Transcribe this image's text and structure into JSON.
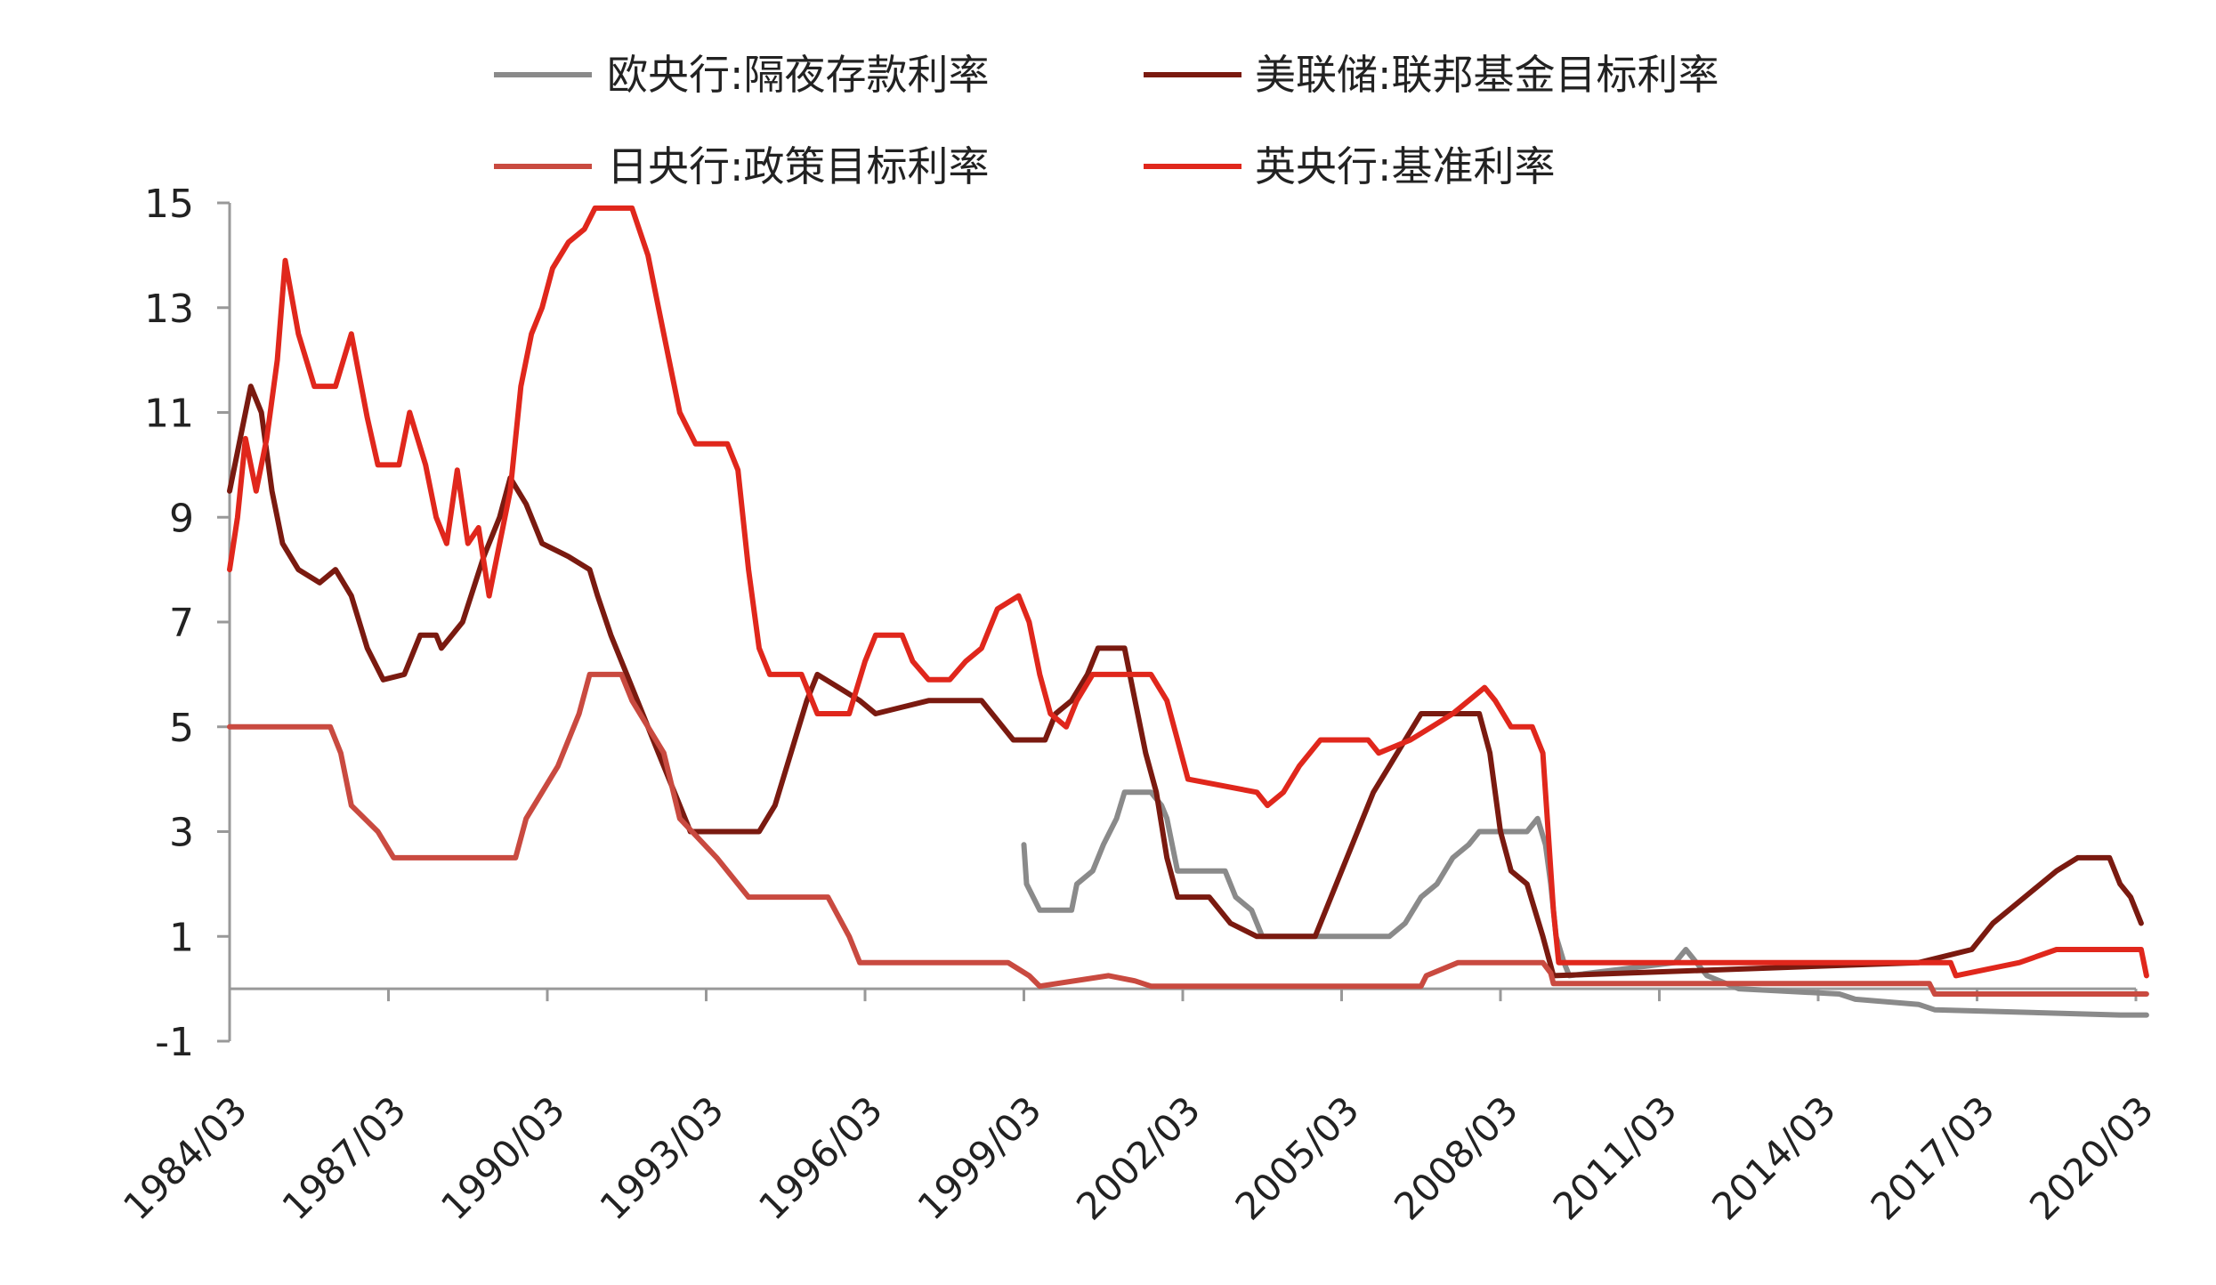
{
  "chart_data": {
    "type": "line",
    "x_ticks": [
      "1984/03",
      "1987/03",
      "1990/03",
      "1993/03",
      "1996/03",
      "1999/03",
      "2002/03",
      "2005/03",
      "2008/03",
      "2011/03",
      "2014/03",
      "2017/03",
      "2020/03"
    ],
    "ylim": [
      -1,
      15
    ],
    "y_ticks": [
      -1,
      1,
      3,
      5,
      7,
      9,
      11,
      13,
      15
    ],
    "legend_position": "top",
    "grid": false,
    "series": [
      {
        "name": "欧央行:隔夜存款利率",
        "color": "#8a8a8a",
        "points": [
          [
            1999.0,
            2.75
          ],
          [
            1999.05,
            2.0
          ],
          [
            1999.3,
            1.5
          ],
          [
            1999.9,
            1.5
          ],
          [
            2000.0,
            2.0
          ],
          [
            2000.3,
            2.25
          ],
          [
            2000.5,
            2.75
          ],
          [
            2000.75,
            3.25
          ],
          [
            2000.9,
            3.75
          ],
          [
            2001.4,
            3.75
          ],
          [
            2001.6,
            3.5
          ],
          [
            2001.7,
            3.25
          ],
          [
            2001.8,
            2.75
          ],
          [
            2001.9,
            2.25
          ],
          [
            2002.8,
            2.25
          ],
          [
            2003.0,
            1.75
          ],
          [
            2003.3,
            1.5
          ],
          [
            2003.5,
            1.0
          ],
          [
            2005.9,
            1.0
          ],
          [
            2006.2,
            1.25
          ],
          [
            2006.5,
            1.75
          ],
          [
            2006.8,
            2.0
          ],
          [
            2007.1,
            2.5
          ],
          [
            2007.4,
            2.75
          ],
          [
            2007.6,
            3.0
          ],
          [
            2008.5,
            3.0
          ],
          [
            2008.7,
            3.25
          ],
          [
            2008.85,
            2.75
          ],
          [
            2008.95,
            2.0
          ],
          [
            2009.05,
            1.0
          ],
          [
            2009.2,
            0.5
          ],
          [
            2009.3,
            0.25
          ],
          [
            2011.3,
            0.5
          ],
          [
            2011.5,
            0.75
          ],
          [
            2011.9,
            0.25
          ],
          [
            2012.5,
            0.0
          ],
          [
            2014.4,
            -0.1
          ],
          [
            2014.7,
            -0.2
          ],
          [
            2015.9,
            -0.3
          ],
          [
            2016.2,
            -0.4
          ],
          [
            2019.7,
            -0.5
          ],
          [
            2020.2,
            -0.5
          ]
        ]
      },
      {
        "name": "美联储:联邦基金目标利率",
        "color": "#7a1a10",
        "points": [
          [
            1984.0,
            9.5
          ],
          [
            1984.2,
            10.5
          ],
          [
            1984.4,
            11.5
          ],
          [
            1984.6,
            11.0
          ],
          [
            1984.8,
            9.5
          ],
          [
            1985.0,
            8.5
          ],
          [
            1985.3,
            8.0
          ],
          [
            1985.7,
            7.75
          ],
          [
            1986.0,
            8.0
          ],
          [
            1986.3,
            7.5
          ],
          [
            1986.6,
            6.5
          ],
          [
            1986.9,
            5.9
          ],
          [
            1987.3,
            6.0
          ],
          [
            1987.6,
            6.75
          ],
          [
            1987.9,
            6.75
          ],
          [
            1988.0,
            6.5
          ],
          [
            1988.4,
            7.0
          ],
          [
            1988.8,
            8.25
          ],
          [
            1989.1,
            9.0
          ],
          [
            1989.3,
            9.75
          ],
          [
            1989.6,
            9.25
          ],
          [
            1989.9,
            8.5
          ],
          [
            1990.4,
            8.25
          ],
          [
            1990.8,
            8.0
          ],
          [
            1990.95,
            7.5
          ],
          [
            1991.2,
            6.75
          ],
          [
            1991.5,
            6.0
          ],
          [
            1991.8,
            5.25
          ],
          [
            1992.1,
            4.5
          ],
          [
            1992.4,
            3.75
          ],
          [
            1992.7,
            3.0
          ],
          [
            1993.5,
            3.0
          ],
          [
            1994.0,
            3.0
          ],
          [
            1994.3,
            3.5
          ],
          [
            1994.6,
            4.5
          ],
          [
            1994.9,
            5.5
          ],
          [
            1995.1,
            6.0
          ],
          [
            1995.5,
            5.75
          ],
          [
            1995.9,
            5.5
          ],
          [
            1996.2,
            5.25
          ],
          [
            1997.2,
            5.5
          ],
          [
            1998.2,
            5.5
          ],
          [
            1998.6,
            5.0
          ],
          [
            1998.8,
            4.75
          ],
          [
            1999.4,
            4.75
          ],
          [
            1999.6,
            5.25
          ],
          [
            1999.9,
            5.5
          ],
          [
            2000.2,
            6.0
          ],
          [
            2000.4,
            6.5
          ],
          [
            2000.9,
            6.5
          ],
          [
            2001.1,
            5.5
          ],
          [
            2001.3,
            4.5
          ],
          [
            2001.5,
            3.75
          ],
          [
            2001.7,
            2.5
          ],
          [
            2001.9,
            1.75
          ],
          [
            2002.5,
            1.75
          ],
          [
            2002.9,
            1.25
          ],
          [
            2003.4,
            1.0
          ],
          [
            2004.5,
            1.0
          ],
          [
            2004.8,
            1.75
          ],
          [
            2005.2,
            2.75
          ],
          [
            2005.6,
            3.75
          ],
          [
            2005.9,
            4.25
          ],
          [
            2006.2,
            4.75
          ],
          [
            2006.5,
            5.25
          ],
          [
            2007.6,
            5.25
          ],
          [
            2007.8,
            4.5
          ],
          [
            2008.0,
            3.0
          ],
          [
            2008.2,
            2.25
          ],
          [
            2008.5,
            2.0
          ],
          [
            2008.8,
            1.0
          ],
          [
            2009.0,
            0.25
          ],
          [
            2015.9,
            0.5
          ],
          [
            2016.9,
            0.75
          ],
          [
            2017.3,
            1.25
          ],
          [
            2017.6,
            1.5
          ],
          [
            2017.9,
            1.75
          ],
          [
            2018.2,
            2.0
          ],
          [
            2018.5,
            2.25
          ],
          [
            2018.9,
            2.5
          ],
          [
            2019.5,
            2.5
          ],
          [
            2019.7,
            2.0
          ],
          [
            2019.9,
            1.75
          ],
          [
            2020.1,
            1.25
          ]
        ]
      },
      {
        "name": "日央行:政策目标利率",
        "color": "#c94a40",
        "points": [
          [
            1984.0,
            5.0
          ],
          [
            1985.9,
            5.0
          ],
          [
            1986.1,
            4.5
          ],
          [
            1986.3,
            3.5
          ],
          [
            1986.8,
            3.0
          ],
          [
            1987.1,
            2.5
          ],
          [
            1989.4,
            2.5
          ],
          [
            1989.6,
            3.25
          ],
          [
            1989.9,
            3.75
          ],
          [
            1990.2,
            4.25
          ],
          [
            1990.6,
            5.25
          ],
          [
            1990.8,
            6.0
          ],
          [
            1991.4,
            6.0
          ],
          [
            1991.6,
            5.5
          ],
          [
            1991.9,
            5.0
          ],
          [
            1992.2,
            4.5
          ],
          [
            1992.5,
            3.25
          ],
          [
            1993.2,
            2.5
          ],
          [
            1993.8,
            1.75
          ],
          [
            1995.3,
            1.75
          ],
          [
            1995.7,
            1.0
          ],
          [
            1995.9,
            0.5
          ],
          [
            1998.7,
            0.5
          ],
          [
            1999.1,
            0.25
          ],
          [
            1999.3,
            0.05
          ],
          [
            2000.6,
            0.25
          ],
          [
            2001.1,
            0.15
          ],
          [
            2001.4,
            0.05
          ],
          [
            2006.5,
            0.05
          ],
          [
            2006.6,
            0.25
          ],
          [
            2007.2,
            0.5
          ],
          [
            2008.8,
            0.5
          ],
          [
            2008.95,
            0.3
          ],
          [
            2009.0,
            0.1
          ],
          [
            2016.1,
            0.1
          ],
          [
            2016.2,
            -0.1
          ],
          [
            2020.2,
            -0.1
          ]
        ]
      },
      {
        "name": "英央行:基准利率",
        "color": "#e0271c",
        "points": [
          [
            1984.0,
            8.0
          ],
          [
            1984.15,
            9.0
          ],
          [
            1984.3,
            10.5
          ],
          [
            1984.5,
            9.5
          ],
          [
            1984.7,
            10.5
          ],
          [
            1984.9,
            12.0
          ],
          [
            1985.05,
            13.9
          ],
          [
            1985.3,
            12.5
          ],
          [
            1985.6,
            11.5
          ],
          [
            1986.0,
            11.5
          ],
          [
            1986.3,
            12.5
          ],
          [
            1986.6,
            10.9
          ],
          [
            1986.8,
            10.0
          ],
          [
            1987.2,
            10.0
          ],
          [
            1987.4,
            11.0
          ],
          [
            1987.7,
            10.0
          ],
          [
            1987.9,
            9.0
          ],
          [
            1988.1,
            8.5
          ],
          [
            1988.3,
            9.9
          ],
          [
            1988.5,
            8.5
          ],
          [
            1988.7,
            8.8
          ],
          [
            1988.9,
            7.5
          ],
          [
            1989.1,
            8.5
          ],
          [
            1989.3,
            9.5
          ],
          [
            1989.5,
            11.5
          ],
          [
            1989.7,
            12.5
          ],
          [
            1989.9,
            13.0
          ],
          [
            1990.1,
            13.75
          ],
          [
            1990.4,
            14.25
          ],
          [
            1990.7,
            14.5
          ],
          [
            1990.9,
            14.9
          ],
          [
            1991.6,
            14.9
          ],
          [
            1991.9,
            14.0
          ],
          [
            1992.1,
            13.0
          ],
          [
            1992.3,
            12.0
          ],
          [
            1992.5,
            11.0
          ],
          [
            1992.8,
            10.4
          ],
          [
            1993.4,
            10.4
          ],
          [
            1993.6,
            9.9
          ],
          [
            1993.8,
            8.0
          ],
          [
            1994.0,
            6.5
          ],
          [
            1994.2,
            6.0
          ],
          [
            1994.8,
            6.0
          ],
          [
            1995.1,
            5.25
          ],
          [
            1995.7,
            5.25
          ],
          [
            1996.0,
            6.25
          ],
          [
            1996.2,
            6.75
          ],
          [
            1996.7,
            6.75
          ],
          [
            1996.9,
            6.25
          ],
          [
            1997.2,
            5.9
          ],
          [
            1997.6,
            5.9
          ],
          [
            1997.9,
            6.25
          ],
          [
            1998.2,
            6.5
          ],
          [
            1998.5,
            7.25
          ],
          [
            1998.9,
            7.5
          ],
          [
            1999.1,
            7.0
          ],
          [
            1999.3,
            6.0
          ],
          [
            1999.5,
            5.25
          ],
          [
            1999.8,
            5.0
          ],
          [
            2000.0,
            5.5
          ],
          [
            2000.3,
            6.0
          ],
          [
            2001.4,
            6.0
          ],
          [
            2001.7,
            5.5
          ],
          [
            2001.9,
            4.75
          ],
          [
            2002.1,
            4.0
          ],
          [
            2003.4,
            3.75
          ],
          [
            2003.6,
            3.5
          ],
          [
            2003.9,
            3.75
          ],
          [
            2004.2,
            4.25
          ],
          [
            2004.6,
            4.75
          ],
          [
            2005.5,
            4.75
          ],
          [
            2005.7,
            4.5
          ],
          [
            2006.3,
            4.75
          ],
          [
            2006.7,
            5.0
          ],
          [
            2007.1,
            5.25
          ],
          [
            2007.4,
            5.5
          ],
          [
            2007.7,
            5.75
          ],
          [
            2007.9,
            5.5
          ],
          [
            2008.2,
            5.0
          ],
          [
            2008.6,
            5.0
          ],
          [
            2008.8,
            4.5
          ],
          [
            2008.9,
            3.0
          ],
          [
            2009.0,
            1.5
          ],
          [
            2009.1,
            0.5
          ],
          [
            2016.5,
            0.5
          ],
          [
            2016.6,
            0.25
          ],
          [
            2017.8,
            0.5
          ],
          [
            2018.5,
            0.75
          ],
          [
            2020.1,
            0.75
          ],
          [
            2020.2,
            0.25
          ]
        ]
      }
    ]
  }
}
